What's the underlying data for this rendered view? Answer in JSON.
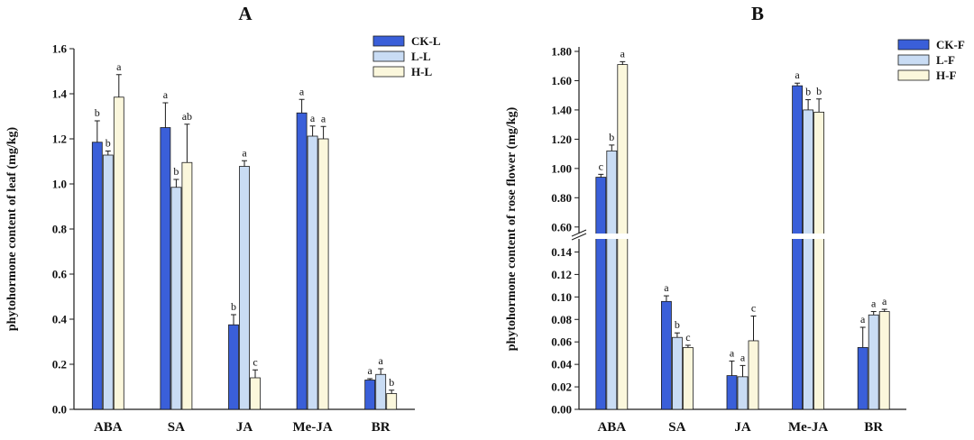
{
  "colors": {
    "series": [
      "#3a5fd9",
      "#c9dcf4",
      "#fbf7dc"
    ],
    "stroke": "#1a1a1a"
  },
  "chart_data": [
    {
      "type": "bar",
      "title": "A",
      "ylabel": "phytohormone content of  leaf (mg/kg)",
      "ylim": [
        0,
        1.6
      ],
      "yticks": [
        "0.0",
        "0.2",
        "0.4",
        "0.6",
        "0.8",
        "1.0",
        "1.2",
        "1.4",
        "1.6"
      ],
      "categories": [
        "ABA",
        "SA",
        "JA",
        "Me-JA",
        "BR"
      ],
      "legend_position": "top-right",
      "series": [
        {
          "name": "CK-L",
          "values": [
            1.185,
            1.25,
            0.375,
            1.315,
            0.13
          ],
          "errors": [
            0.095,
            0.11,
            0.045,
            0.06,
            0.006
          ],
          "letters": [
            "b",
            "a",
            "b",
            "a",
            "a"
          ]
        },
        {
          "name": "L-L",
          "values": [
            1.128,
            0.985,
            1.078,
            1.212,
            0.155
          ],
          "errors": [
            0.018,
            0.035,
            0.025,
            0.045,
            0.025
          ],
          "letters": [
            "b",
            "b",
            "a",
            "a",
            "a"
          ]
        },
        {
          "name": "H-L",
          "values": [
            1.385,
            1.095,
            0.14,
            1.2,
            0.07
          ],
          "errors": [
            0.1,
            0.17,
            0.035,
            0.055,
            0.015
          ],
          "letters": [
            "a",
            "ab",
            "c",
            "a",
            "b"
          ]
        }
      ]
    },
    {
      "type": "bar",
      "title": "B",
      "ylabel": "phytohormone content of rose flower (mg/kg)",
      "axis_break": true,
      "ylim_lower": [
        0,
        0.15
      ],
      "ylim_upper": [
        0.5,
        1.8
      ],
      "yticks_lower": [
        "0.00",
        "0.02",
        "0.04",
        "0.06",
        "0.08",
        "0.10",
        "0.12",
        "0.14"
      ],
      "yticks_upper": [
        "0.60",
        "0.80",
        "1.00",
        "1.20",
        "1.40",
        "1.60",
        "1.80"
      ],
      "categories": [
        "ABA",
        "SA",
        "JA",
        "Me-JA",
        "BR"
      ],
      "legend_position": "top-right",
      "series": [
        {
          "name": "CK-F",
          "values": [
            0.94,
            0.096,
            0.03,
            1.565,
            0.055
          ],
          "errors": [
            0.02,
            0.005,
            0.013,
            0.018,
            0.018
          ],
          "letters": [
            "c",
            "a",
            "a",
            "a",
            "a"
          ]
        },
        {
          "name": "L-F",
          "values": [
            1.12,
            0.064,
            0.029,
            1.4,
            0.084
          ],
          "errors": [
            0.04,
            0.004,
            0.01,
            0.07,
            0.003
          ],
          "letters": [
            "b",
            "b",
            "a",
            "b",
            "a"
          ]
        },
        {
          "name": "H-F",
          "values": [
            1.71,
            0.055,
            0.061,
            1.385,
            0.087
          ],
          "errors": [
            0.02,
            0.002,
            0.022,
            0.09,
            0.002
          ],
          "letters": [
            "a",
            "c",
            "c",
            "b",
            "a"
          ]
        }
      ]
    }
  ]
}
